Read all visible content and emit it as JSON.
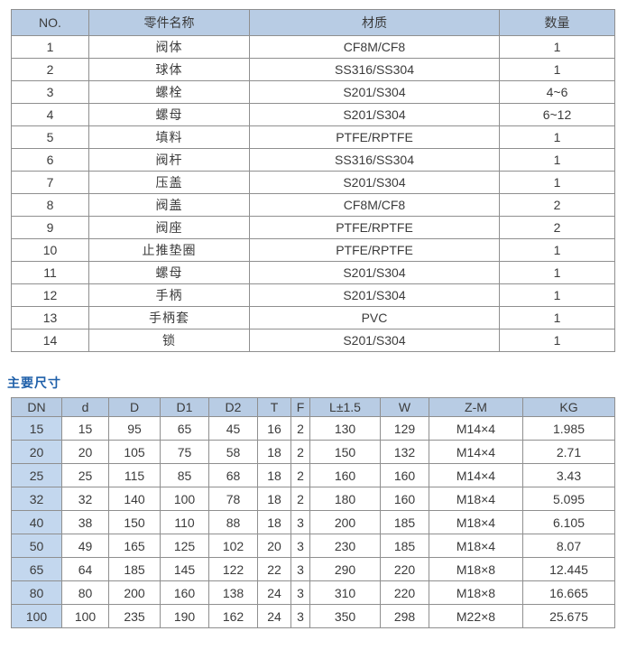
{
  "parts_table": {
    "headers": [
      "NO.",
      "零件名称",
      "材质",
      "数量"
    ],
    "rows": [
      [
        "1",
        "阀体",
        "CF8M/CF8",
        "1"
      ],
      [
        "2",
        "球体",
        "SS316/SS304",
        "1"
      ],
      [
        "3",
        "螺栓",
        "S201/S304",
        "4~6"
      ],
      [
        "4",
        "螺母",
        "S201/S304",
        "6~12"
      ],
      [
        "5",
        "填料",
        "PTFE/RPTFE",
        "1"
      ],
      [
        "6",
        "阀杆",
        "SS316/SS304",
        "1"
      ],
      [
        "7",
        "压盖",
        "S201/S304",
        "1"
      ],
      [
        "8",
        "阀盖",
        "CF8M/CF8",
        "2"
      ],
      [
        "9",
        "阀座",
        "PTFE/RPTFE",
        "2"
      ],
      [
        "10",
        "止推垫圈",
        "PTFE/RPTFE",
        "1"
      ],
      [
        "11",
        "螺母",
        "S201/S304",
        "1"
      ],
      [
        "12",
        "手柄",
        "S201/S304",
        "1"
      ],
      [
        "13",
        "手柄套",
        "PVC",
        "1"
      ],
      [
        "14",
        "锁",
        "S201/S304",
        "1"
      ]
    ]
  },
  "dimensions": {
    "title": "主要尺寸",
    "table": {
      "headers": [
        "DN",
        "d",
        "D",
        "D1",
        "D2",
        "T",
        "F",
        "L±1.5",
        "W",
        "Z-M",
        "KG"
      ],
      "rows": [
        [
          "15",
          "15",
          "95",
          "65",
          "45",
          "16",
          "2",
          "130",
          "129",
          "M14×4",
          "1.985"
        ],
        [
          "20",
          "20",
          "105",
          "75",
          "58",
          "18",
          "2",
          "150",
          "132",
          "M14×4",
          "2.71"
        ],
        [
          "25",
          "25",
          "115",
          "85",
          "68",
          "18",
          "2",
          "160",
          "160",
          "M14×4",
          "3.43"
        ],
        [
          "32",
          "32",
          "140",
          "100",
          "78",
          "18",
          "2",
          "180",
          "160",
          "M18×4",
          "5.095"
        ],
        [
          "40",
          "38",
          "150",
          "110",
          "88",
          "18",
          "3",
          "200",
          "185",
          "M18×4",
          "6.105"
        ],
        [
          "50",
          "49",
          "165",
          "125",
          "102",
          "20",
          "3",
          "230",
          "185",
          "M18×4",
          "8.07"
        ],
        [
          "65",
          "64",
          "185",
          "145",
          "122",
          "22",
          "3",
          "290",
          "220",
          "M18×8",
          "12.445"
        ],
        [
          "80",
          "80",
          "200",
          "160",
          "138",
          "24",
          "3",
          "310",
          "220",
          "M18×8",
          "16.665"
        ],
        [
          "100",
          "100",
          "235",
          "190",
          "162",
          "24",
          "3",
          "350",
          "298",
          "M22×8",
          "25.675"
        ]
      ]
    }
  },
  "colors": {
    "header_bg": "#b8cce4",
    "dn_column_bg": "#c3d7ee",
    "section_title": "#1e5fa9",
    "border": "#8f8f8f",
    "text": "#3b3b3b"
  }
}
